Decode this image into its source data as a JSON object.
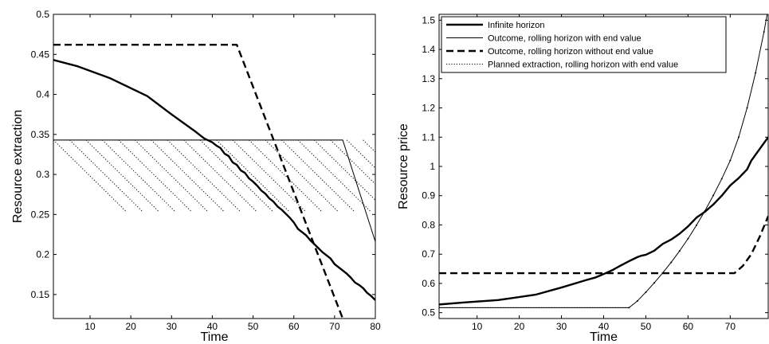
{
  "chart_data": [
    {
      "type": "line",
      "title": "",
      "xlabel": "Time",
      "ylabel": "Resource extraction",
      "xlim": [
        1,
        80
      ],
      "ylim": [
        0.12,
        0.5
      ],
      "xticks": [
        10,
        20,
        30,
        40,
        50,
        60,
        70,
        80
      ],
      "yticks": [
        0.15,
        0.2,
        0.25,
        0.3,
        0.35,
        0.4,
        0.45,
        0.5
      ],
      "grid": false,
      "legend": "none",
      "series": [
        {
          "style": "thick-solid",
          "points": [
            [
              1,
              0.443
            ],
            [
              7,
              0.435
            ],
            [
              15,
              0.42
            ],
            [
              24,
              0.398
            ],
            [
              30,
              0.375
            ],
            [
              36,
              0.353
            ],
            [
              38,
              0.345
            ],
            [
              40,
              0.34
            ],
            [
              41,
              0.336
            ],
            [
              42,
              0.333
            ],
            [
              43,
              0.326
            ],
            [
              44,
              0.323
            ],
            [
              45,
              0.315
            ],
            [
              46,
              0.312
            ],
            [
              47,
              0.305
            ],
            [
              48,
              0.302
            ],
            [
              49,
              0.295
            ],
            [
              50,
              0.291
            ],
            [
              51,
              0.286
            ],
            [
              52,
              0.28
            ],
            [
              53,
              0.276
            ],
            [
              54,
              0.27
            ],
            [
              55,
              0.266
            ],
            [
              56,
              0.26
            ],
            [
              57,
              0.256
            ],
            [
              58,
              0.251
            ],
            [
              59,
              0.246
            ],
            [
              60,
              0.24
            ],
            [
              61,
              0.232
            ],
            [
              62,
              0.228
            ],
            [
              63,
              0.224
            ],
            [
              64,
              0.218
            ],
            [
              65,
              0.213
            ],
            [
              66,
              0.208
            ],
            [
              67,
              0.203
            ],
            [
              68,
              0.199
            ],
            [
              69,
              0.195
            ],
            [
              70,
              0.188
            ],
            [
              71,
              0.184
            ],
            [
              72,
              0.18
            ],
            [
              73,
              0.176
            ],
            [
              74,
              0.171
            ],
            [
              75,
              0.165
            ],
            [
              76,
              0.162
            ],
            [
              77,
              0.158
            ],
            [
              78,
              0.152
            ],
            [
              79,
              0.148
            ],
            [
              80,
              0.143
            ]
          ]
        },
        {
          "style": "thin-solid",
          "points": [
            [
              1,
              0.343
            ],
            [
              72,
              0.343
            ],
            [
              80,
              0.216
            ]
          ]
        },
        {
          "style": "dashed",
          "points": [
            [
              1,
              0.462
            ],
            [
              46,
              0.462
            ],
            [
              72,
              0.12
            ]
          ]
        },
        {
          "style": "dotted",
          "points": [
            [
              1,
              0.343
            ],
            [
              72,
              0.343
            ]
          ]
        }
      ],
      "planned_paths": [
        {
          "start": 1,
          "end": 19,
          "from": 0.343,
          "to": 0.253
        },
        {
          "start": 5,
          "end": 23,
          "from": 0.343,
          "to": 0.253
        },
        {
          "start": 9,
          "end": 27,
          "from": 0.343,
          "to": 0.253
        },
        {
          "start": 13,
          "end": 31,
          "from": 0.343,
          "to": 0.253
        },
        {
          "start": 17,
          "end": 35,
          "from": 0.343,
          "to": 0.253
        },
        {
          "start": 21,
          "end": 39,
          "from": 0.343,
          "to": 0.253
        },
        {
          "start": 25,
          "end": 43,
          "from": 0.343,
          "to": 0.253
        },
        {
          "start": 29,
          "end": 47,
          "from": 0.343,
          "to": 0.253
        },
        {
          "start": 33,
          "end": 51,
          "from": 0.343,
          "to": 0.253
        },
        {
          "start": 37,
          "end": 55,
          "from": 0.343,
          "to": 0.253
        },
        {
          "start": 41,
          "end": 59,
          "from": 0.343,
          "to": 0.253
        },
        {
          "start": 45,
          "end": 63,
          "from": 0.343,
          "to": 0.253
        },
        {
          "start": 49,
          "end": 67,
          "from": 0.343,
          "to": 0.253
        },
        {
          "start": 53,
          "end": 71,
          "from": 0.343,
          "to": 0.253
        },
        {
          "start": 57,
          "end": 75,
          "from": 0.343,
          "to": 0.253
        },
        {
          "start": 61,
          "end": 79,
          "from": 0.343,
          "to": 0.253
        },
        {
          "start": 65,
          "end": 80,
          "from": 0.343,
          "to": 0.268
        },
        {
          "start": 69,
          "end": 80,
          "from": 0.343,
          "to": 0.288
        },
        {
          "start": 73,
          "end": 80,
          "from": 0.343,
          "to": 0.308
        },
        {
          "start": 77,
          "end": 80,
          "from": 0.343,
          "to": 0.328
        }
      ]
    },
    {
      "type": "line",
      "title": "",
      "xlabel": "Time",
      "ylabel": "Resource price",
      "xlim": [
        1,
        79
      ],
      "ylim": [
        0.48,
        1.52
      ],
      "xticks": [
        10,
        20,
        30,
        40,
        50,
        60,
        70
      ],
      "yticks": [
        0.5,
        0.6,
        0.7,
        0.8,
        0.9,
        1,
        1.1,
        1.2,
        1.3,
        1.4,
        1.5
      ],
      "grid": false,
      "legend": "top-left",
      "series": [
        {
          "name": "Infinite horizon",
          "style": "thick-solid",
          "points": [
            [
              1,
              0.528
            ],
            [
              7,
              0.535
            ],
            [
              15,
              0.543
            ],
            [
              24,
              0.562
            ],
            [
              30,
              0.586
            ],
            [
              36,
              0.612
            ],
            [
              38,
              0.62
            ],
            [
              40,
              0.632
            ],
            [
              42,
              0.645
            ],
            [
              44,
              0.661
            ],
            [
              46,
              0.676
            ],
            [
              48,
              0.69
            ],
            [
              49,
              0.695
            ],
            [
              50,
              0.698
            ],
            [
              52,
              0.712
            ],
            [
              54,
              0.735
            ],
            [
              56,
              0.75
            ],
            [
              58,
              0.77
            ],
            [
              60,
              0.795
            ],
            [
              62,
              0.825
            ],
            [
              64,
              0.845
            ],
            [
              66,
              0.87
            ],
            [
              68,
              0.9
            ],
            [
              70,
              0.935
            ],
            [
              72,
              0.96
            ],
            [
              74,
              0.99
            ],
            [
              75,
              1.02
            ],
            [
              77,
              1.06
            ],
            [
              79,
              1.1
            ]
          ]
        },
        {
          "name": "Outcome, rolling horizon with end value",
          "style": "thin-solid-marked",
          "points": [
            [
              1,
              0.517
            ],
            [
              46,
              0.517
            ],
            [
              48,
              0.54
            ],
            [
              50,
              0.57
            ],
            [
              52,
              0.602
            ],
            [
              54,
              0.636
            ],
            [
              56,
              0.672
            ],
            [
              58,
              0.711
            ],
            [
              60,
              0.753
            ],
            [
              62,
              0.799
            ],
            [
              64,
              0.848
            ],
            [
              66,
              0.901
            ],
            [
              68,
              0.958
            ],
            [
              70,
              1.02
            ],
            [
              72,
              1.1
            ],
            [
              74,
              1.2
            ],
            [
              76,
              1.32
            ],
            [
              78,
              1.46
            ],
            [
              79,
              1.54
            ]
          ]
        },
        {
          "name": "Outcome, rolling horizon without end value",
          "style": "dashed",
          "points": [
            [
              1,
              0.635
            ],
            [
              71,
              0.635
            ],
            [
              73,
              0.66
            ],
            [
              75,
              0.7
            ],
            [
              77,
              0.76
            ],
            [
              79,
              0.83
            ]
          ]
        },
        {
          "name": "Planned extraction, rolling horizon with end value",
          "style": "dotted",
          "points": [
            [
              1,
              0.517
            ],
            [
              46,
              0.517
            ]
          ]
        }
      ]
    }
  ]
}
